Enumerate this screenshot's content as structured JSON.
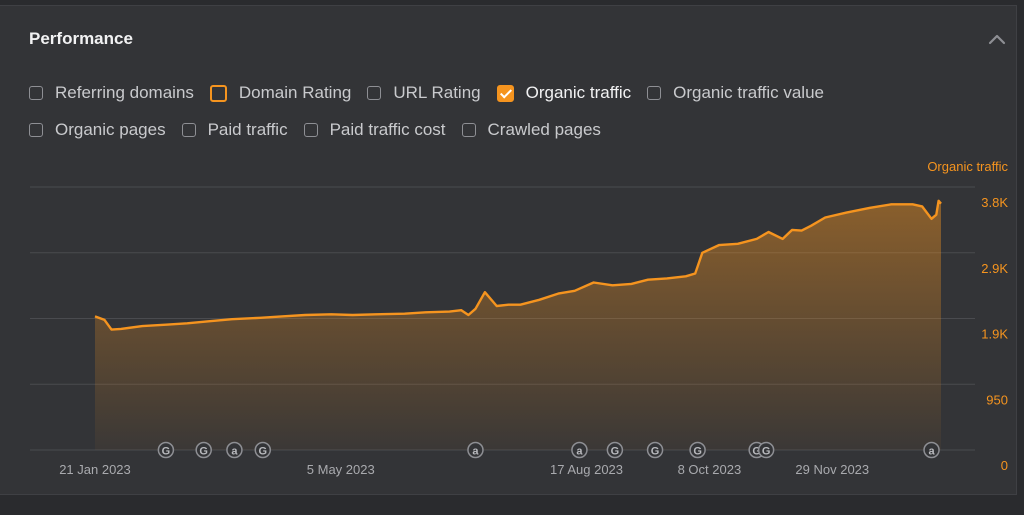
{
  "panel": {
    "title": "Performance"
  },
  "checkboxes": [
    {
      "label": "Referring domains",
      "state": "unchecked"
    },
    {
      "label": "Domain Rating",
      "state": "outlined"
    },
    {
      "label": "URL Rating",
      "state": "unchecked"
    },
    {
      "label": "Organic traffic",
      "state": "checked"
    },
    {
      "label": "Organic traffic value",
      "state": "unchecked"
    },
    {
      "label": "Organic pages",
      "state": "unchecked"
    },
    {
      "label": "Paid traffic",
      "state": "unchecked"
    },
    {
      "label": "Paid traffic cost",
      "state": "unchecked"
    },
    {
      "label": "Crawled pages",
      "state": "unchecked"
    }
  ],
  "colors": {
    "accent": "#f5941f",
    "grid": "#4a4b4f",
    "axis_text": "#a9aaae"
  },
  "chart_data": {
    "type": "area",
    "series": [
      {
        "name": "Organic traffic",
        "x": [
          "2023-01-21",
          "2023-01-25",
          "2023-01-28",
          "2023-02-01",
          "2023-02-10",
          "2023-02-20",
          "2023-03-01",
          "2023-03-10",
          "2023-03-20",
          "2023-04-01",
          "2023-04-10",
          "2023-04-20",
          "2023-05-01",
          "2023-05-10",
          "2023-05-20",
          "2023-06-01",
          "2023-06-10",
          "2023-06-20",
          "2023-06-25",
          "2023-06-28",
          "2023-07-01",
          "2023-07-05",
          "2023-07-10",
          "2023-07-15",
          "2023-07-20",
          "2023-07-28",
          "2023-08-05",
          "2023-08-12",
          "2023-08-20",
          "2023-08-28",
          "2023-09-05",
          "2023-09-12",
          "2023-09-20",
          "2023-09-28",
          "2023-10-02",
          "2023-10-05",
          "2023-10-12",
          "2023-10-20",
          "2023-10-28",
          "2023-11-02",
          "2023-11-08",
          "2023-11-12",
          "2023-11-16",
          "2023-11-20",
          "2023-11-26",
          "2023-12-05",
          "2023-12-15",
          "2023-12-24",
          "2023-12-30",
          "2024-01-02",
          "2024-01-06",
          "2024-01-10",
          "2024-01-12",
          "2024-01-13",
          "2024-01-14"
        ],
        "y": [
          1930,
          1880,
          1740,
          1750,
          1790,
          1810,
          1830,
          1860,
          1890,
          1910,
          1930,
          1950,
          1960,
          1950,
          1960,
          1970,
          1990,
          2000,
          2020,
          1950,
          2040,
          2280,
          2080,
          2100,
          2100,
          2170,
          2260,
          2300,
          2420,
          2380,
          2400,
          2460,
          2480,
          2510,
          2550,
          2850,
          2960,
          2980,
          3050,
          3150,
          3050,
          3180,
          3170,
          3240,
          3360,
          3430,
          3500,
          3550,
          3550,
          3550,
          3520,
          3340,
          3400,
          3600,
          3560
        ]
      }
    ],
    "y_ticks": [
      "0",
      "950",
      "1.9K",
      "2.9K",
      "3.8K"
    ],
    "y_tick_values": [
      0,
      950,
      1900,
      2850,
      3800
    ],
    "ylim": [
      0,
      3800
    ],
    "x_tick_labels": [
      "21 Jan 2023",
      "5 May 2023",
      "17 Aug 2023",
      "8 Oct 2023",
      "29 Nov 2023"
    ],
    "x_tick_dates": [
      "2023-01-21",
      "2023-05-05",
      "2023-08-17",
      "2023-10-08",
      "2023-11-29"
    ],
    "xlim": [
      "2023-01-21",
      "2024-01-14"
    ],
    "legend": "Organic traffic",
    "legend_position": "top-right",
    "grid": true,
    "annotations": [
      {
        "date": "2023-02-20",
        "icon": "google-update-icon",
        "label": "G"
      },
      {
        "date": "2023-03-08",
        "icon": "google-update-icon",
        "label": "G"
      },
      {
        "date": "2023-03-21",
        "icon": "annotation-icon",
        "label": "a"
      },
      {
        "date": "2023-04-02",
        "icon": "google-update-icon",
        "label": "G"
      },
      {
        "date": "2023-07-01",
        "icon": "annotation-icon",
        "label": "a"
      },
      {
        "date": "2023-08-14",
        "icon": "annotation-icon",
        "label": "a"
      },
      {
        "date": "2023-08-29",
        "icon": "google-update-icon",
        "label": "G"
      },
      {
        "date": "2023-09-15",
        "icon": "google-update-icon",
        "label": "G"
      },
      {
        "date": "2023-10-03",
        "icon": "google-update-icon",
        "label": "G"
      },
      {
        "date": "2023-10-28",
        "icon": "google-update-icon",
        "label": "G"
      },
      {
        "date": "2023-11-01",
        "icon": "google-update-icon",
        "label": "G"
      },
      {
        "date": "2024-01-10",
        "icon": "annotation-icon",
        "label": "a"
      }
    ]
  }
}
